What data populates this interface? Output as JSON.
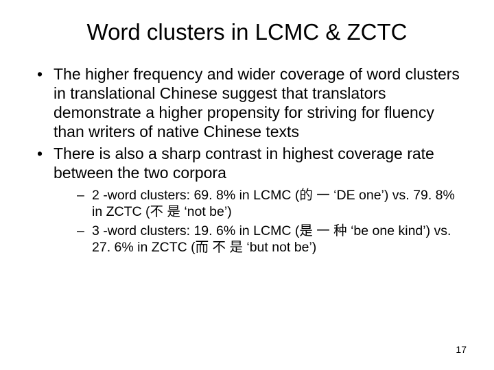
{
  "title": "Word clusters in LCMC & ZCTC",
  "bullets": {
    "item0": "The higher frequency and wider coverage of word clusters in translational Chinese suggest that translators demonstrate a higher propensity for striving for fluency than writers of native Chinese texts",
    "item1": "There is also a sharp contrast in highest coverage rate between the two corpora",
    "sub0": "2 -word clusters: 69. 8% in LCMC (的 一 ‘DE one’) vs. 79. 8% in ZCTC (不 是 ‘not be’)",
    "sub1": "3 -word clusters: 19. 6% in LCMC (是 一 种 ‘be one kind’) vs. 27. 6% in ZCTC (而 不 是 ‘but not be’)"
  },
  "pageNumber": "17",
  "style": {
    "background_color": "#ffffff",
    "text_color": "#000000",
    "title_fontsize_pt": 33,
    "body_fontsize_pt": 23,
    "sub_fontsize_pt": 19.5,
    "pagenum_fontsize_pt": 14,
    "font_family": "Arial"
  }
}
